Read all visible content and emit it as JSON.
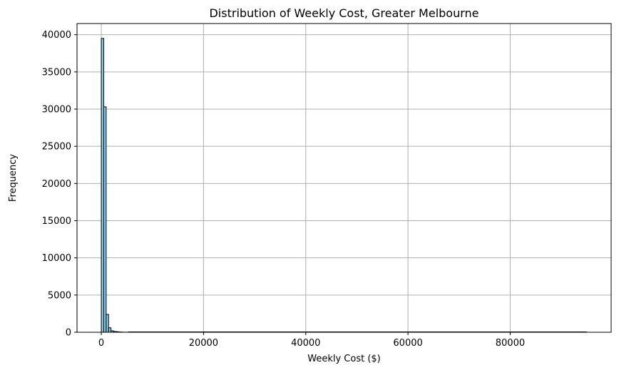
{
  "chart_data": {
    "type": "bar",
    "subtype": "histogram",
    "title": "Distribution of Weekly Cost, Greater Melbourne",
    "xlabel": "Weekly Cost ($)",
    "ylabel": "Frequency",
    "xlim": [
      -4750,
      99750
    ],
    "ylim": [
      0,
      41500
    ],
    "xticks": [
      0,
      20000,
      40000,
      60000,
      80000
    ],
    "yticks": [
      0,
      5000,
      10000,
      15000,
      20000,
      25000,
      30000,
      35000,
      40000
    ],
    "grid": true,
    "bar_color": "#87ceeb",
    "edge_color": "#000000",
    "bin_width": 475,
    "bins": [
      {
        "start": 0,
        "end": 475,
        "count": 39500
      },
      {
        "start": 475,
        "end": 950,
        "count": 30300
      },
      {
        "start": 950,
        "end": 1425,
        "count": 2400
      },
      {
        "start": 1425,
        "end": 1900,
        "count": 600
      },
      {
        "start": 1900,
        "end": 2375,
        "count": 200
      },
      {
        "start": 2375,
        "end": 2850,
        "count": 100
      },
      {
        "start": 2850,
        "end": 3325,
        "count": 80
      },
      {
        "start": 3325,
        "end": 3800,
        "count": 40
      },
      {
        "start": 3800,
        "end": 4275,
        "count": 20
      },
      {
        "start": 4275,
        "end": 4750,
        "count": 10
      },
      {
        "start": 4750,
        "end": 5225,
        "count": 5
      }
    ],
    "max_x": 95000
  }
}
